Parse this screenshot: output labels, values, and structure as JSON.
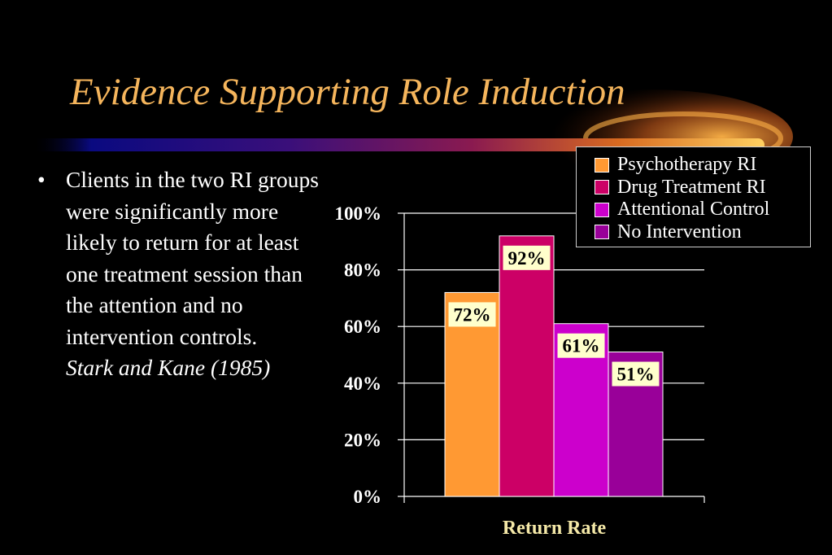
{
  "slide": {
    "title": "Evidence Supporting Role Induction",
    "bullet_char": "•",
    "bullet_text": "Clients in the two RI groups were significantly more likely to return for at least one treatment session than the attention and no intervention controls.",
    "citation": "Stark and Kane (1985)"
  },
  "colors": {
    "title": "#f5b55c",
    "psychotherapy_ri": "#ff9933",
    "drug_treatment_ri": "#cc0066",
    "attentional_control": "#cc00cc",
    "no_intervention": "#990099",
    "label_box": "#ffffcc",
    "xlabel": "#f5e9a8"
  },
  "chart_data": {
    "type": "bar",
    "title": "",
    "xlabel": "Return Rate",
    "ylabel": "",
    "categories": [
      "Return Rate"
    ],
    "ylim": [
      0,
      100
    ],
    "yticks": [
      "0%",
      "20%",
      "40%",
      "60%",
      "80%",
      "100%"
    ],
    "legend_position": "top-right",
    "series": [
      {
        "name": "Psychotherapy RI",
        "values": [
          72
        ],
        "label": "72%",
        "color": "#ff9933"
      },
      {
        "name": "Drug Treatment RI",
        "values": [
          92
        ],
        "label": "92%",
        "color": "#cc0066"
      },
      {
        "name": "Attentional Control",
        "values": [
          61
        ],
        "label": "61%",
        "color": "#cc00cc"
      },
      {
        "name": "No Intervention",
        "values": [
          51
        ],
        "label": "51%",
        "color": "#990099"
      }
    ]
  }
}
